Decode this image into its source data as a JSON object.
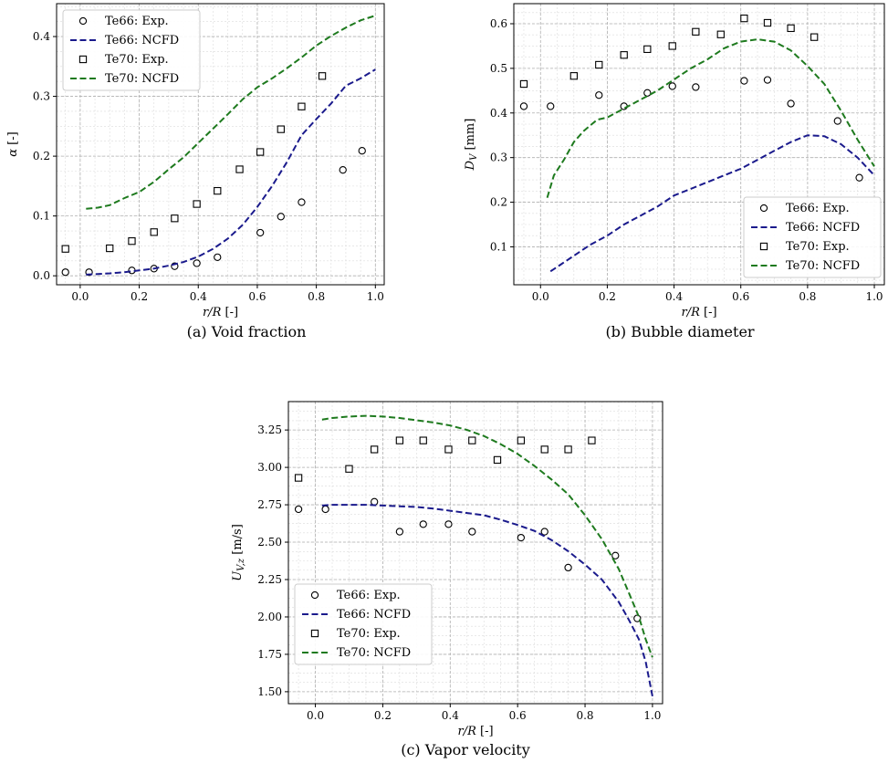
{
  "captions": {
    "a": "(a) Void fraction",
    "b": "(b) Bubble diameter",
    "c": "(c) Vapor velocity"
  },
  "colors": {
    "te66_line": "#1a1a8c",
    "te70_line": "#1e7a1e",
    "marker": "#000000",
    "grid_major": "#b0b0b0",
    "grid_minor": "#dcdcdc"
  },
  "chart_data": [
    {
      "type": "line",
      "xlabel": "r/R [-]",
      "ylabel": "α [-]",
      "xlim": [
        -0.08,
        1.03
      ],
      "ylim": [
        -0.015,
        0.455
      ],
      "xticks": [
        0.0,
        0.2,
        0.4,
        0.6,
        0.8,
        1.0
      ],
      "xtick_labels": [
        "0.0",
        "0.2",
        "0.4",
        "0.6",
        "0.8",
        "1.0"
      ],
      "yticks": [
        0.0,
        0.1,
        0.2,
        0.3,
        0.4
      ],
      "ytick_labels": [
        "0.0",
        "0.1",
        "0.2",
        "0.3",
        "0.4"
      ],
      "grid": true,
      "legend_position": "top-left",
      "series": [
        {
          "name": "Te66: Exp.",
          "kind": "marker",
          "marker": "circle",
          "x": [
            -0.05,
            0.03,
            0.175,
            0.25,
            0.32,
            0.395,
            0.465,
            0.61,
            0.68,
            0.75,
            0.89,
            0.955
          ],
          "y": [
            0.006,
            0.006,
            0.009,
            0.012,
            0.016,
            0.021,
            0.031,
            0.072,
            0.099,
            0.123,
            0.177,
            0.209
          ]
        },
        {
          "name": "Te66: NCFD",
          "kind": "line",
          "color_key": "te66_line",
          "x": [
            0.02,
            0.06,
            0.1,
            0.15,
            0.2,
            0.25,
            0.3,
            0.35,
            0.4,
            0.45,
            0.5,
            0.55,
            0.6,
            0.65,
            0.7,
            0.75,
            0.8,
            0.85,
            0.9,
            0.95,
            1.0
          ],
          "y": [
            0.002,
            0.003,
            0.004,
            0.006,
            0.009,
            0.012,
            0.017,
            0.023,
            0.032,
            0.045,
            0.062,
            0.085,
            0.115,
            0.15,
            0.19,
            0.235,
            0.262,
            0.288,
            0.318,
            0.33,
            0.345
          ]
        },
        {
          "name": "Te70: Exp.",
          "kind": "marker",
          "marker": "square",
          "x": [
            -0.05,
            0.1,
            0.175,
            0.25,
            0.32,
            0.395,
            0.465,
            0.54,
            0.61,
            0.68,
            0.75,
            0.82
          ],
          "y": [
            0.045,
            0.046,
            0.058,
            0.073,
            0.096,
            0.12,
            0.142,
            0.178,
            0.207,
            0.245,
            0.283,
            0.334
          ]
        },
        {
          "name": "Te70: NCFD",
          "kind": "line",
          "color_key": "te70_line",
          "x": [
            0.02,
            0.06,
            0.1,
            0.15,
            0.2,
            0.25,
            0.3,
            0.35,
            0.4,
            0.45,
            0.5,
            0.55,
            0.6,
            0.65,
            0.7,
            0.75,
            0.8,
            0.85,
            0.9,
            0.95,
            1.0
          ],
          "y": [
            0.112,
            0.114,
            0.118,
            0.13,
            0.14,
            0.157,
            0.178,
            0.198,
            0.222,
            0.246,
            0.27,
            0.295,
            0.315,
            0.33,
            0.347,
            0.365,
            0.385,
            0.401,
            0.415,
            0.427,
            0.435
          ]
        }
      ]
    },
    {
      "type": "line",
      "xlabel": "r/R [-]",
      "ylabel": "D_V [mm]",
      "xlim": [
        -0.08,
        1.03
      ],
      "ylim": [
        0.015,
        0.645
      ],
      "xticks": [
        0.0,
        0.2,
        0.4,
        0.6,
        0.8,
        1.0
      ],
      "xtick_labels": [
        "0.0",
        "0.2",
        "0.4",
        "0.6",
        "0.8",
        "1.0"
      ],
      "yticks": [
        0.1,
        0.2,
        0.3,
        0.4,
        0.5,
        0.6
      ],
      "ytick_labels": [
        "0.1",
        "0.2",
        "0.3",
        "0.4",
        "0.5",
        "0.6"
      ],
      "grid": true,
      "legend_position": "bottom-right",
      "series": [
        {
          "name": "Te66: Exp.",
          "kind": "marker",
          "marker": "circle",
          "x": [
            -0.05,
            0.03,
            0.175,
            0.25,
            0.32,
            0.395,
            0.465,
            0.61,
            0.68,
            0.75,
            0.89,
            0.955
          ],
          "y": [
            0.415,
            0.415,
            0.44,
            0.415,
            0.445,
            0.46,
            0.458,
            0.472,
            0.474,
            0.421,
            0.382,
            0.255
          ]
        },
        {
          "name": "Te66: NCFD",
          "kind": "line",
          "color_key": "te66_line",
          "x": [
            0.03,
            0.06,
            0.1,
            0.15,
            0.2,
            0.25,
            0.3,
            0.35,
            0.4,
            0.45,
            0.5,
            0.55,
            0.6,
            0.65,
            0.7,
            0.75,
            0.8,
            0.85,
            0.9,
            0.95,
            1.0
          ],
          "y": [
            0.045,
            0.06,
            0.08,
            0.105,
            0.125,
            0.15,
            0.17,
            0.19,
            0.215,
            0.23,
            0.245,
            0.26,
            0.275,
            0.295,
            0.315,
            0.335,
            0.35,
            0.348,
            0.33,
            0.3,
            0.26
          ]
        },
        {
          "name": "Te70: Exp.",
          "kind": "marker",
          "marker": "square",
          "x": [
            -0.05,
            0.1,
            0.175,
            0.25,
            0.32,
            0.395,
            0.465,
            0.54,
            0.61,
            0.68,
            0.75,
            0.82
          ],
          "y": [
            0.465,
            0.483,
            0.508,
            0.53,
            0.543,
            0.55,
            0.582,
            0.576,
            0.612,
            0.602,
            0.59,
            0.57
          ]
        },
        {
          "name": "Te70: NCFD",
          "kind": "line",
          "color_key": "te70_line",
          "x": [
            0.02,
            0.04,
            0.07,
            0.1,
            0.13,
            0.17,
            0.2,
            0.25,
            0.3,
            0.35,
            0.4,
            0.45,
            0.5,
            0.55,
            0.6,
            0.65,
            0.7,
            0.75,
            0.8,
            0.85,
            0.9,
            0.95,
            1.0
          ],
          "y": [
            0.21,
            0.26,
            0.295,
            0.335,
            0.36,
            0.385,
            0.39,
            0.41,
            0.43,
            0.45,
            0.475,
            0.5,
            0.52,
            0.545,
            0.56,
            0.565,
            0.56,
            0.54,
            0.505,
            0.465,
            0.405,
            0.34,
            0.28
          ]
        }
      ]
    },
    {
      "type": "line",
      "xlabel": "r/R [-]",
      "ylabel": "U_{V,z} [m/s]",
      "xlim": [
        -0.08,
        1.03
      ],
      "ylim": [
        1.42,
        3.44
      ],
      "xticks": [
        0.0,
        0.2,
        0.4,
        0.6,
        0.8,
        1.0
      ],
      "xtick_labels": [
        "0.0",
        "0.2",
        "0.4",
        "0.6",
        "0.8",
        "1.0"
      ],
      "yticks": [
        1.5,
        1.75,
        2.0,
        2.25,
        2.5,
        2.75,
        3.0,
        3.25
      ],
      "ytick_labels": [
        "1.50",
        "1.75",
        "2.00",
        "2.25",
        "2.50",
        "2.75",
        "3.00",
        "3.25"
      ],
      "grid": true,
      "legend_position": "bottom-left",
      "series": [
        {
          "name": "Te66: Exp.",
          "kind": "marker",
          "marker": "circle",
          "x": [
            -0.05,
            0.03,
            0.175,
            0.25,
            0.32,
            0.395,
            0.465,
            0.61,
            0.68,
            0.75,
            0.89,
            0.955
          ],
          "y": [
            2.72,
            2.72,
            2.77,
            2.57,
            2.62,
            2.62,
            2.57,
            2.53,
            2.57,
            2.33,
            2.41,
            1.99
          ]
        },
        {
          "name": "Te66: NCFD",
          "kind": "line",
          "color_key": "te66_line",
          "x": [
            0.02,
            0.05,
            0.1,
            0.15,
            0.2,
            0.25,
            0.3,
            0.35,
            0.4,
            0.45,
            0.5,
            0.55,
            0.6,
            0.65,
            0.7,
            0.75,
            0.8,
            0.85,
            0.9,
            0.93,
            0.96,
            0.98,
            1.0
          ],
          "y": [
            2.745,
            2.75,
            2.75,
            2.75,
            2.745,
            2.74,
            2.735,
            2.725,
            2.71,
            2.695,
            2.68,
            2.65,
            2.615,
            2.575,
            2.515,
            2.44,
            2.35,
            2.25,
            2.1,
            1.98,
            1.85,
            1.7,
            1.47
          ]
        },
        {
          "name": "Te70: Exp.",
          "kind": "marker",
          "marker": "square",
          "x": [
            -0.05,
            0.1,
            0.175,
            0.25,
            0.32,
            0.395,
            0.465,
            0.54,
            0.61,
            0.68,
            0.75,
            0.82
          ],
          "y": [
            2.93,
            2.99,
            3.12,
            3.18,
            3.18,
            3.12,
            3.18,
            3.05,
            3.18,
            3.12,
            3.12,
            3.18
          ]
        },
        {
          "name": "Te70: NCFD",
          "kind": "line",
          "color_key": "te70_line",
          "x": [
            0.02,
            0.05,
            0.1,
            0.15,
            0.2,
            0.25,
            0.3,
            0.35,
            0.4,
            0.45,
            0.5,
            0.55,
            0.6,
            0.65,
            0.7,
            0.75,
            0.8,
            0.85,
            0.9,
            0.93,
            0.96,
            0.98,
            1.0
          ],
          "y": [
            3.32,
            3.33,
            3.34,
            3.345,
            3.34,
            3.33,
            3.315,
            3.3,
            3.28,
            3.25,
            3.21,
            3.155,
            3.09,
            3.01,
            2.92,
            2.82,
            2.68,
            2.52,
            2.32,
            2.16,
            2.0,
            1.85,
            1.73
          ]
        }
      ]
    }
  ]
}
